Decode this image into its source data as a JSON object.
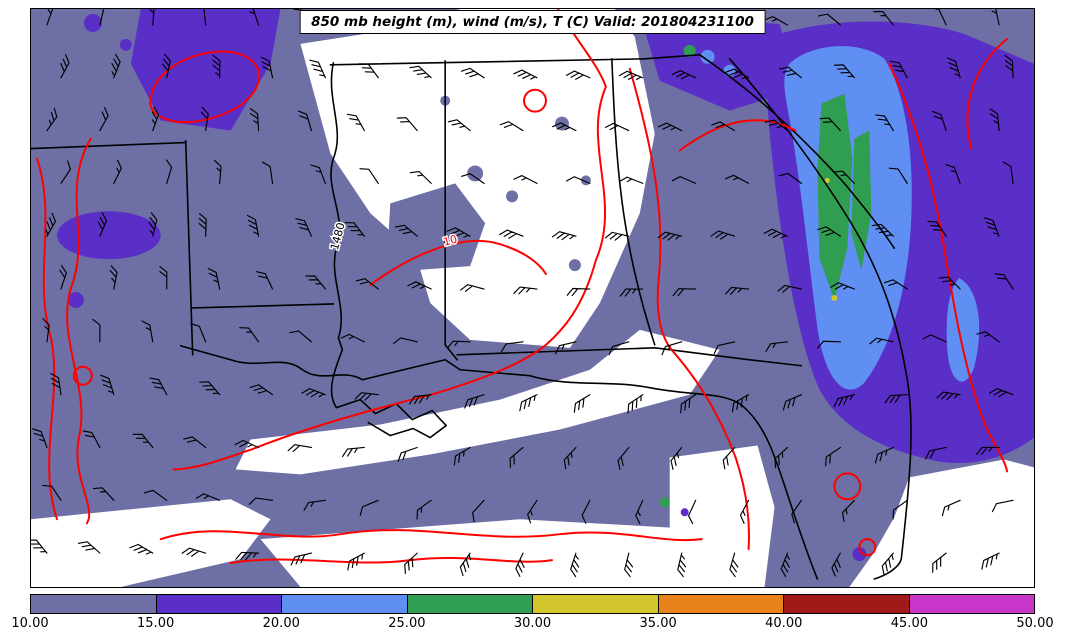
{
  "title": "850 mb height (m), wind (m/s), T (C) Valid: 201804231100",
  "colorbar": {
    "tick_labels": [
      "10.00",
      "15.00",
      "20.00",
      "25.00",
      "30.00",
      "35.00",
      "40.00",
      "45.00",
      "50.00"
    ],
    "segment_colors": [
      "#6e70a5",
      "#5a2fc8",
      "#5f8ff2",
      "#2f9e50",
      "#d2c62c",
      "#e8821a",
      "#a01a1a",
      "#c835c8"
    ]
  },
  "map": {
    "colors": {
      "background": "#ffffff",
      "shade_10_15": "#6e70a5",
      "shade_15_20": "#5a2fc8",
      "shade_20_25": "#5f8ff2",
      "shade_25_30": "#2f9e50",
      "shade_30_35": "#d2c62c",
      "temp_contour": "#ff0000",
      "boundary": "#000000",
      "wind_barb": "#000000"
    },
    "contour_labels": [
      {
        "text": "1480",
        "color": "#000000"
      },
      {
        "text": "10",
        "color": "#ff0000"
      }
    ]
  }
}
